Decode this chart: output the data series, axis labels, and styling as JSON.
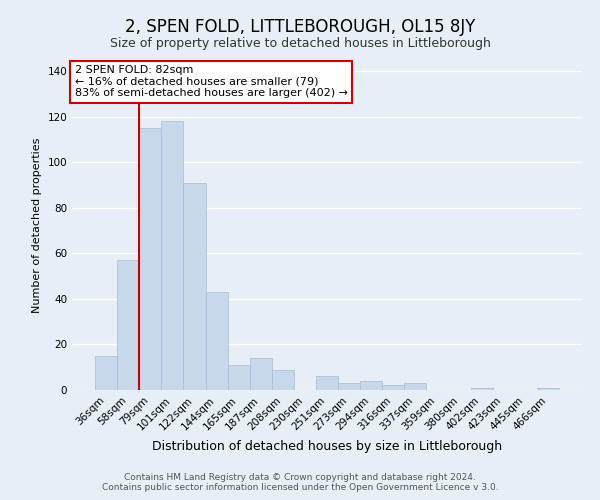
{
  "title": "2, SPEN FOLD, LITTLEBOROUGH, OL15 8JY",
  "subtitle": "Size of property relative to detached houses in Littleborough",
  "xlabel": "Distribution of detached houses by size in Littleborough",
  "ylabel": "Number of detached properties",
  "bar_color": "#c8d8ec",
  "bar_edge_color": "#a8bcd4",
  "vline_color": "#cc0000",
  "categories": [
    "36sqm",
    "58sqm",
    "79sqm",
    "101sqm",
    "122sqm",
    "144sqm",
    "165sqm",
    "187sqm",
    "208sqm",
    "230sqm",
    "251sqm",
    "273sqm",
    "294sqm",
    "316sqm",
    "337sqm",
    "359sqm",
    "380sqm",
    "402sqm",
    "423sqm",
    "445sqm",
    "466sqm"
  ],
  "values": [
    15,
    57,
    115,
    118,
    91,
    43,
    11,
    14,
    9,
    0,
    6,
    3,
    4,
    2,
    3,
    0,
    0,
    1,
    0,
    0,
    1
  ],
  "ylim": [
    0,
    145
  ],
  "yticks": [
    0,
    20,
    40,
    60,
    80,
    100,
    120,
    140
  ],
  "annotation_title": "2 SPEN FOLD: 82sqm",
  "annotation_line1": "← 16% of detached houses are smaller (79)",
  "annotation_line2": "83% of semi-detached houses are larger (402) →",
  "footer_line1": "Contains HM Land Registry data © Crown copyright and database right 2024.",
  "footer_line2": "Contains public sector information licensed under the Open Government Licence v 3.0.",
  "background_color": "#e8eef5",
  "plot_background": "#e8eef5",
  "grid_color": "#ffffff",
  "annotation_box_edge": "#cc0000",
  "title_fontsize": 12,
  "subtitle_fontsize": 9,
  "ylabel_fontsize": 8,
  "xlabel_fontsize": 9,
  "tick_fontsize": 7.5,
  "footer_fontsize": 6.5,
  "ann_fontsize": 8
}
